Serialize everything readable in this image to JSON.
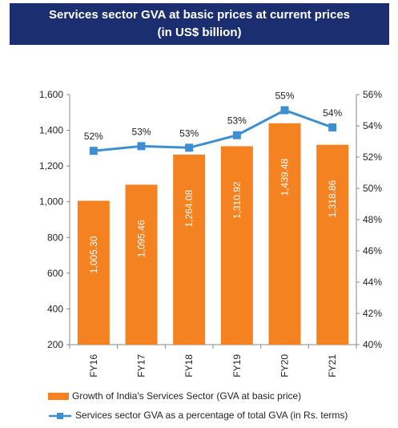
{
  "title_line1": "Services sector GVA at basic prices at current prices",
  "title_line2": "(in US$ billion)",
  "chart_data": {
    "type": "bar",
    "categories": [
      "FY16",
      "FY17",
      "FY18",
      "FY19",
      "FY20",
      "FY21"
    ],
    "series": [
      {
        "name": "Growth of India's Services Sector (GVA at basic price)",
        "type": "bar",
        "axis": "left",
        "color": "#f58220",
        "values": [
          1005.3,
          1095.46,
          1264.08,
          1310.92,
          1439.48,
          1318.86
        ],
        "labels": [
          "1,005.30",
          "1,095.46",
          "1,264.08",
          "1,310.92",
          "1,439.48",
          "1,318.86"
        ]
      },
      {
        "name": "Services sector GVA as a percentage of total GVA (in Rs. terms)",
        "type": "line",
        "axis": "right",
        "color": "#3d8fd1",
        "values": [
          52.4,
          52.7,
          52.6,
          53.4,
          55.0,
          53.9
        ],
        "labels": [
          "52%",
          "53%",
          "53%",
          "53%",
          "55%",
          "54%"
        ]
      }
    ],
    "left_axis": {
      "min": 200,
      "max": 1600,
      "ticks": [
        200,
        400,
        600,
        800,
        1000,
        1200,
        1400,
        1600
      ],
      "tick_labels": [
        "200",
        "400",
        "600",
        "800",
        "1,000",
        "1,200",
        "1,400",
        "1,600"
      ]
    },
    "right_axis": {
      "min": 40,
      "max": 56,
      "ticks": [
        40,
        42,
        44,
        46,
        48,
        50,
        52,
        54,
        56
      ],
      "tick_labels": [
        "40%",
        "42%",
        "44%",
        "46%",
        "48%",
        "50%",
        "52%",
        "54%",
        "56%"
      ]
    },
    "grid": false,
    "legend_position": "bottom"
  }
}
